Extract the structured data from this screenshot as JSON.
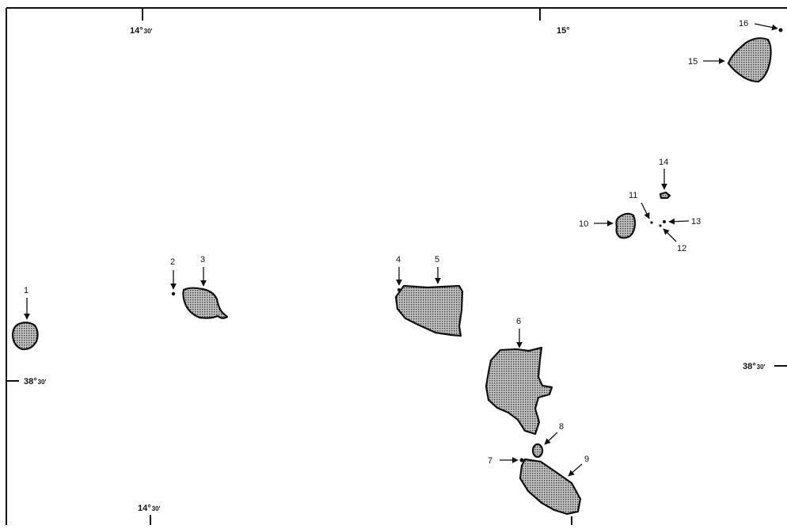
{
  "map": {
    "graticule": {
      "top_left_lon": {
        "deg": "14°",
        "min": "30'"
      },
      "top_right_lon": {
        "deg": "15°"
      },
      "bottom_left_lon": {
        "deg": "14°",
        "min": "30'"
      },
      "left_lat": {
        "deg": "38°",
        "min": "30'"
      },
      "right_lat": {
        "deg": "38°",
        "min": "30'"
      }
    },
    "islands": [
      {
        "number": "1"
      },
      {
        "number": "2"
      },
      {
        "number": "3"
      },
      {
        "number": "4"
      },
      {
        "number": "5"
      },
      {
        "number": "6"
      },
      {
        "number": "7"
      },
      {
        "number": "8"
      },
      {
        "number": "9"
      },
      {
        "number": "10"
      },
      {
        "number": "11"
      },
      {
        "number": "12"
      },
      {
        "number": "13"
      },
      {
        "number": "14"
      },
      {
        "number": "15"
      },
      {
        "number": "16"
      }
    ],
    "colors": {
      "land_fill": "#9a9a9a",
      "outline": "#111111",
      "background": "#ffffff"
    }
  }
}
